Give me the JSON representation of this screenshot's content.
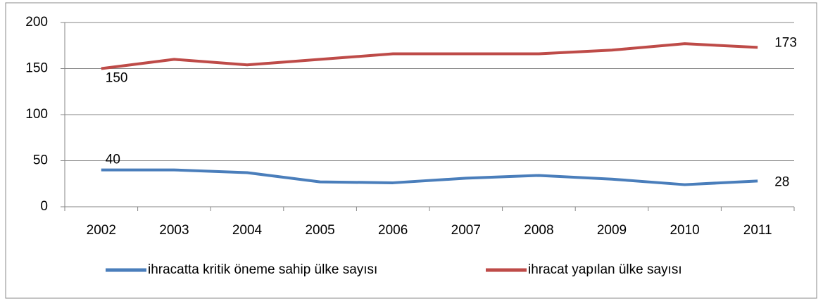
{
  "chart_data": {
    "type": "line",
    "categories": [
      "2002",
      "2003",
      "2004",
      "2005",
      "2006",
      "2007",
      "2008",
      "2009",
      "2010",
      "2011"
    ],
    "series": [
      {
        "name": "ihracatta kritik öneme sahip ülke sayısı",
        "color": "#4a7ebb",
        "values": [
          40,
          40,
          37,
          27,
          26,
          31,
          34,
          30,
          24,
          28
        ]
      },
      {
        "name": "ihracat yapılan ülke sayısı",
        "color": "#be4b48",
        "values": [
          150,
          160,
          154,
          160,
          166,
          166,
          166,
          170,
          177,
          173
        ]
      }
    ],
    "ylim": [
      0,
      200
    ],
    "yticks": [
      0,
      50,
      100,
      150,
      200
    ],
    "grid": true,
    "data_labels": "first-last",
    "legend": "bottom"
  }
}
